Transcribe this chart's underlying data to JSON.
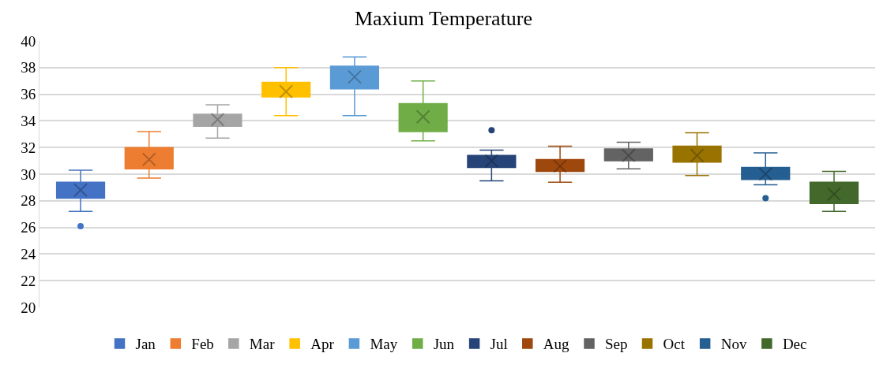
{
  "chart_data": {
    "type": "box",
    "title": "Maxium Temperature",
    "categories": [
      null,
      null,
      null,
      null,
      null,
      null,
      null,
      null,
      null,
      null,
      null,
      null
    ],
    "series": [
      {
        "name": "Jan",
        "color": "#4472c4",
        "boxes": [
          {
            "low": 27.2,
            "q1": 28.2,
            "median": 28.8,
            "q3": 29.4,
            "high": 30.3,
            "mean": 28.8,
            "outliers": [
              26.1
            ]
          },
          null,
          null,
          null,
          null,
          null,
          null,
          null,
          null,
          null,
          null,
          null
        ]
      },
      {
        "name": "Feb",
        "color": "#ed7d31",
        "boxes": [
          null,
          {
            "low": 29.7,
            "q1": 30.4,
            "median": 31.1,
            "q3": 32.0,
            "high": 33.2,
            "mean": 31.1
          },
          null,
          null,
          null,
          null,
          null,
          null,
          null,
          null,
          null,
          null
        ]
      },
      {
        "name": "Mar",
        "color": "#a5a5a5",
        "boxes": [
          null,
          null,
          {
            "low": 32.7,
            "q1": 33.6,
            "median": 34.2,
            "q3": 34.5,
            "high": 35.2,
            "mean": 34.1
          },
          null,
          null,
          null,
          null,
          null,
          null,
          null,
          null,
          null
        ]
      },
      {
        "name": "Apr",
        "color": "#ffc000",
        "boxes": [
          null,
          null,
          null,
          {
            "low": 34.4,
            "q1": 35.8,
            "median": 36.2,
            "q3": 36.9,
            "high": 38.0,
            "mean": 36.2
          },
          null,
          null,
          null,
          null,
          null,
          null,
          null,
          null
        ]
      },
      {
        "name": "May",
        "color": "#5b9bd5",
        "boxes": [
          null,
          null,
          null,
          null,
          {
            "low": 34.4,
            "q1": 36.4,
            "median": 37.5,
            "q3": 38.1,
            "high": 38.8,
            "mean": 37.3
          },
          null,
          null,
          null,
          null,
          null,
          null,
          null
        ]
      },
      {
        "name": "Jun",
        "color": "#70ad47",
        "boxes": [
          null,
          null,
          null,
          null,
          null,
          {
            "low": 32.5,
            "q1": 33.2,
            "median": 34.0,
            "q3": 35.3,
            "high": 37.0,
            "mean": 34.3
          },
          null,
          null,
          null,
          null,
          null,
          null
        ]
      },
      {
        "name": "Jul",
        "color": "#264478",
        "boxes": [
          null,
          null,
          null,
          null,
          null,
          null,
          {
            "low": 29.5,
            "q1": 30.5,
            "median": 30.9,
            "q3": 31.4,
            "high": 31.8,
            "mean": 31.0,
            "outliers": [
              33.3
            ]
          },
          null,
          null,
          null,
          null,
          null
        ]
      },
      {
        "name": "Aug",
        "color": "#9e480e",
        "boxes": [
          null,
          null,
          null,
          null,
          null,
          null,
          null,
          {
            "low": 29.4,
            "q1": 30.2,
            "median": 30.7,
            "q3": 31.1,
            "high": 32.1,
            "mean": 30.6
          },
          null,
          null,
          null,
          null
        ]
      },
      {
        "name": "Sep",
        "color": "#636363",
        "boxes": [
          null,
          null,
          null,
          null,
          null,
          null,
          null,
          null,
          {
            "low": 30.4,
            "q1": 31.0,
            "median": 31.4,
            "q3": 31.9,
            "high": 32.4,
            "mean": 31.4
          },
          null,
          null,
          null
        ]
      },
      {
        "name": "Oct",
        "color": "#997300",
        "boxes": [
          null,
          null,
          null,
          null,
          null,
          null,
          null,
          null,
          null,
          {
            "low": 29.9,
            "q1": 30.9,
            "median": 31.5,
            "q3": 32.1,
            "high": 33.1,
            "mean": 31.4
          },
          null,
          null
        ]
      },
      {
        "name": "Nov",
        "color": "#255e91",
        "boxes": [
          null,
          null,
          null,
          null,
          null,
          null,
          null,
          null,
          null,
          null,
          {
            "low": 29.2,
            "q1": 29.6,
            "median": 30.0,
            "q3": 30.5,
            "high": 31.6,
            "mean": 30.0,
            "outliers": [
              28.2
            ]
          },
          null
        ]
      },
      {
        "name": "Dec",
        "color": "#43682b",
        "boxes": [
          null,
          null,
          null,
          null,
          null,
          null,
          null,
          null,
          null,
          null,
          null,
          {
            "low": 27.2,
            "q1": 27.8,
            "median": 28.6,
            "q3": 29.4,
            "high": 30.2,
            "mean": 28.5
          }
        ]
      }
    ],
    "ylim": [
      20,
      40
    ],
    "yticks": [
      20,
      22,
      24,
      26,
      28,
      30,
      32,
      34,
      36,
      38,
      40
    ],
    "grid": "y",
    "legend": "bottom",
    "tick_labels": "y"
  }
}
